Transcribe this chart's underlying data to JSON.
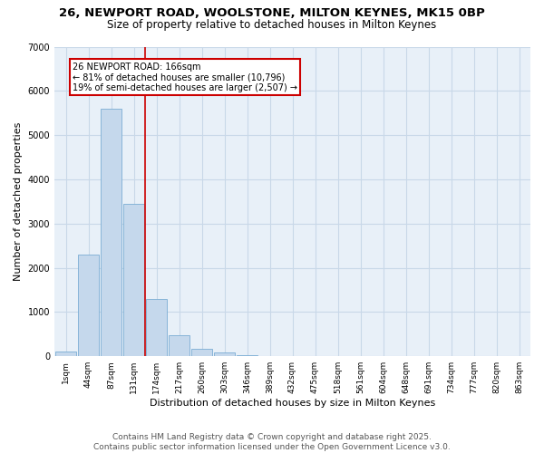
{
  "title_line1": "26, NEWPORT ROAD, WOOLSTONE, MILTON KEYNES, MK15 0BP",
  "title_line2": "Size of property relative to detached houses in Milton Keynes",
  "xlabel": "Distribution of detached houses by size in Milton Keynes",
  "ylabel": "Number of detached properties",
  "categories": [
    "1sqm",
    "44sqm",
    "87sqm",
    "131sqm",
    "174sqm",
    "217sqm",
    "260sqm",
    "303sqm",
    "346sqm",
    "389sqm",
    "432sqm",
    "475sqm",
    "518sqm",
    "561sqm",
    "604sqm",
    "648sqm",
    "691sqm",
    "734sqm",
    "777sqm",
    "820sqm",
    "863sqm"
  ],
  "values": [
    100,
    2300,
    5600,
    3450,
    1300,
    480,
    170,
    80,
    30,
    0,
    0,
    0,
    0,
    0,
    0,
    0,
    0,
    0,
    0,
    0,
    0
  ],
  "bar_color": "#c5d8ec",
  "bar_edge_color": "#7aadd4",
  "vline_x": 3.5,
  "vline_color": "#cc0000",
  "annotation_text": "26 NEWPORT ROAD: 166sqm\n← 81% of detached houses are smaller (10,796)\n19% of semi-detached houses are larger (2,507) →",
  "annotation_box_color": "#cc0000",
  "ylim": [
    0,
    7000
  ],
  "yticks": [
    0,
    1000,
    2000,
    3000,
    4000,
    5000,
    6000,
    7000
  ],
  "grid_color": "#c8d8e8",
  "bg_color": "#e8f0f8",
  "footer_line1": "Contains HM Land Registry data © Crown copyright and database right 2025.",
  "footer_line2": "Contains public sector information licensed under the Open Government Licence v3.0.",
  "title_fontsize": 9.5,
  "subtitle_fontsize": 8.5,
  "tick_fontsize": 6.5,
  "label_fontsize": 8,
  "footer_fontsize": 6.5,
  "annotation_fontsize": 7
}
